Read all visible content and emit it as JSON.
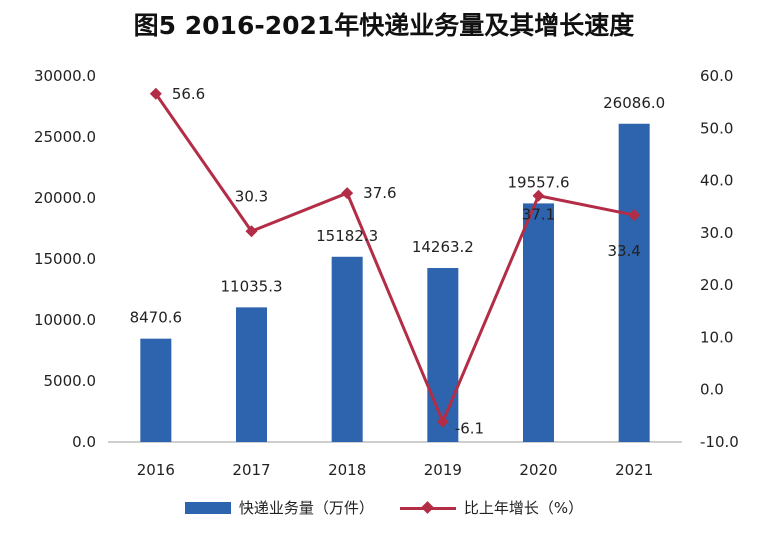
{
  "title": "图5 2016-2021年快递业务量及其增长速度",
  "colors": {
    "bar": "#2e63ad",
    "line": "#b22d45",
    "axis": "#bdbdbd"
  },
  "legend": {
    "bar_label": "快递业务量（万件）",
    "line_label": "比上年增长（%）"
  },
  "chart_data": {
    "type": "bar",
    "categories": [
      "2016",
      "2017",
      "2018",
      "2019",
      "2020",
      "2021"
    ],
    "series": [
      {
        "name": "快递业务量（万件）",
        "type": "bar",
        "axis": "left",
        "values": [
          8470.6,
          11035.3,
          15182.3,
          14263.2,
          19557.6,
          26086.0
        ],
        "labels": [
          "8470.6",
          "11035.3",
          "15182.3",
          "14263.2",
          "19557.6",
          "26086.0"
        ]
      },
      {
        "name": "比上年增长（%）",
        "type": "line",
        "axis": "right",
        "values": [
          56.6,
          30.3,
          37.6,
          -6.1,
          37.1,
          33.4
        ],
        "labels": [
          "56.6",
          "30.3",
          "37.6",
          "-6.1",
          "37.1",
          "33.4"
        ]
      }
    ],
    "y_left": {
      "range": [
        0,
        30000
      ],
      "ticks": [
        "0.0",
        "5000.0",
        "10000.0",
        "15000.0",
        "20000.0",
        "25000.0",
        "30000.0"
      ]
    },
    "y_right": {
      "range": [
        -10,
        60
      ],
      "ticks": [
        "-10.0",
        "0.0",
        "10.0",
        "20.0",
        "30.0",
        "40.0",
        "50.0",
        "60.0"
      ]
    },
    "grid": false,
    "legend_position": "bottom"
  }
}
